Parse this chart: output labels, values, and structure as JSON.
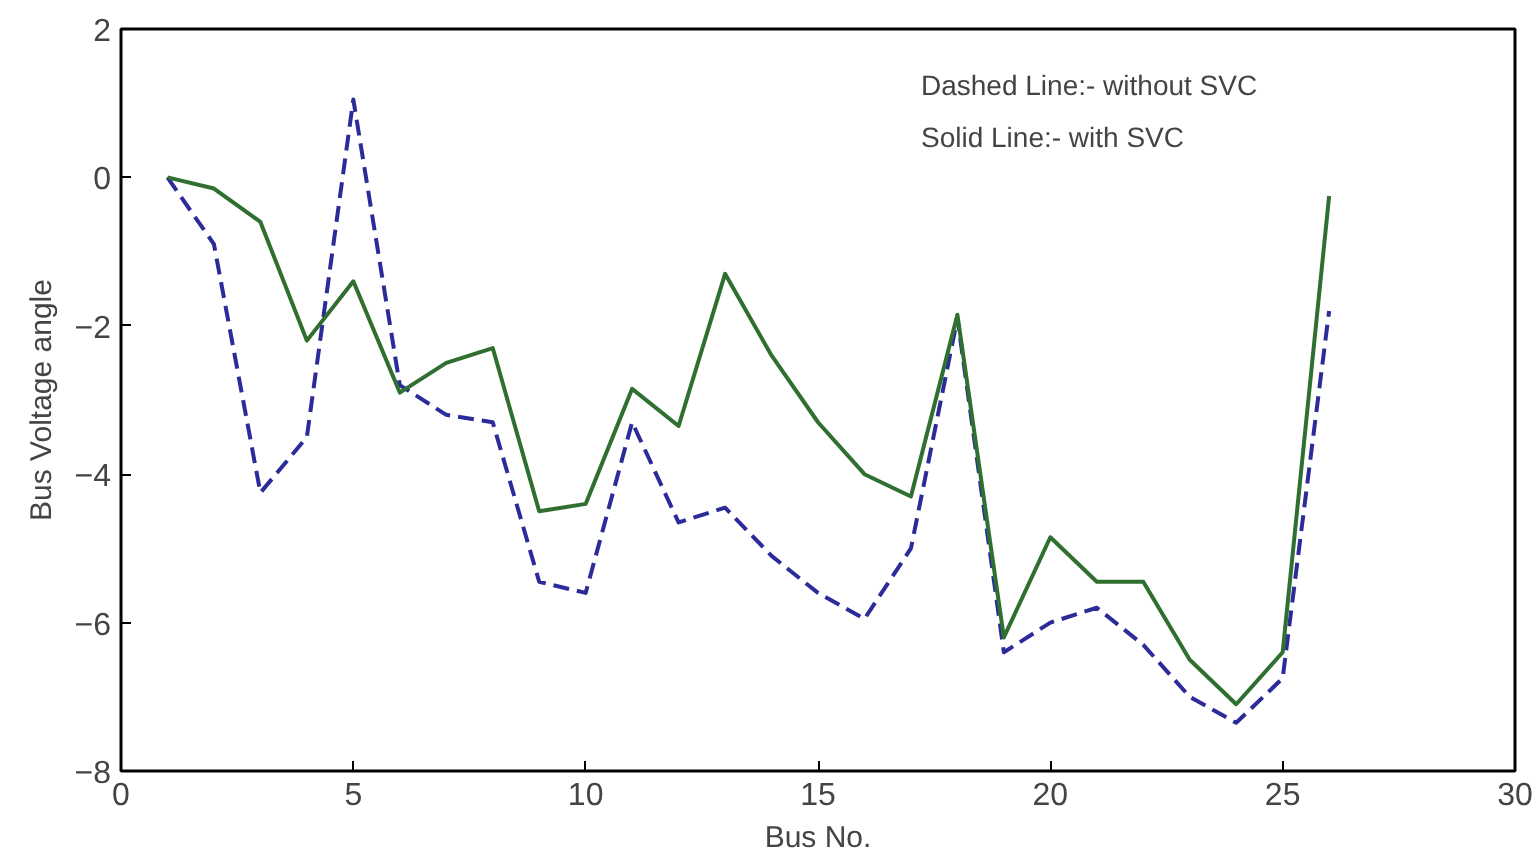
{
  "chart_data": {
    "type": "line",
    "xlabel": "Bus No.",
    "ylabel": "Bus Voltage angle",
    "x": [
      1,
      2,
      3,
      4,
      5,
      6,
      7,
      8,
      9,
      10,
      11,
      12,
      13,
      14,
      15,
      16,
      17,
      18,
      19,
      20,
      21,
      22,
      23,
      24,
      25,
      26
    ],
    "xlim": [
      0,
      30
    ],
    "xticks": [
      0,
      5,
      10,
      15,
      20,
      25,
      30
    ],
    "ylim": [
      -8,
      2
    ],
    "yticks": [
      -8,
      -6,
      -4,
      -2,
      0,
      2
    ],
    "grid": false,
    "annotations": [
      "Dashed Line:- without SVC",
      "Solid Line:- with SVC"
    ],
    "series": [
      {
        "color": "#2b2b9a",
        "line_style": "dashed",
        "values": [
          0,
          -0.9,
          -4.25,
          -3.5,
          1.05,
          -2.8,
          -3.2,
          -3.3,
          -5.45,
          -5.6,
          -3.3,
          -4.65,
          -4.45,
          -5.1,
          -5.6,
          -5.95,
          -5.0,
          -1.9,
          -6.4,
          -6.0,
          -5.8,
          -6.3,
          -7.0,
          -7.35,
          -6.75,
          -1.8
        ]
      },
      {
        "color": "#2f6f2f",
        "line_style": "solid",
        "values": [
          0,
          -0.15,
          -0.6,
          -2.2,
          -1.4,
          -2.9,
          -2.5,
          -2.3,
          -4.5,
          -4.4,
          -2.85,
          -3.35,
          -1.3,
          -2.4,
          -3.3,
          -4.0,
          -4.3,
          -1.85,
          -6.2,
          -4.85,
          -5.45,
          -5.45,
          -6.5,
          -7.1,
          -6.4,
          -0.25
        ]
      }
    ]
  }
}
